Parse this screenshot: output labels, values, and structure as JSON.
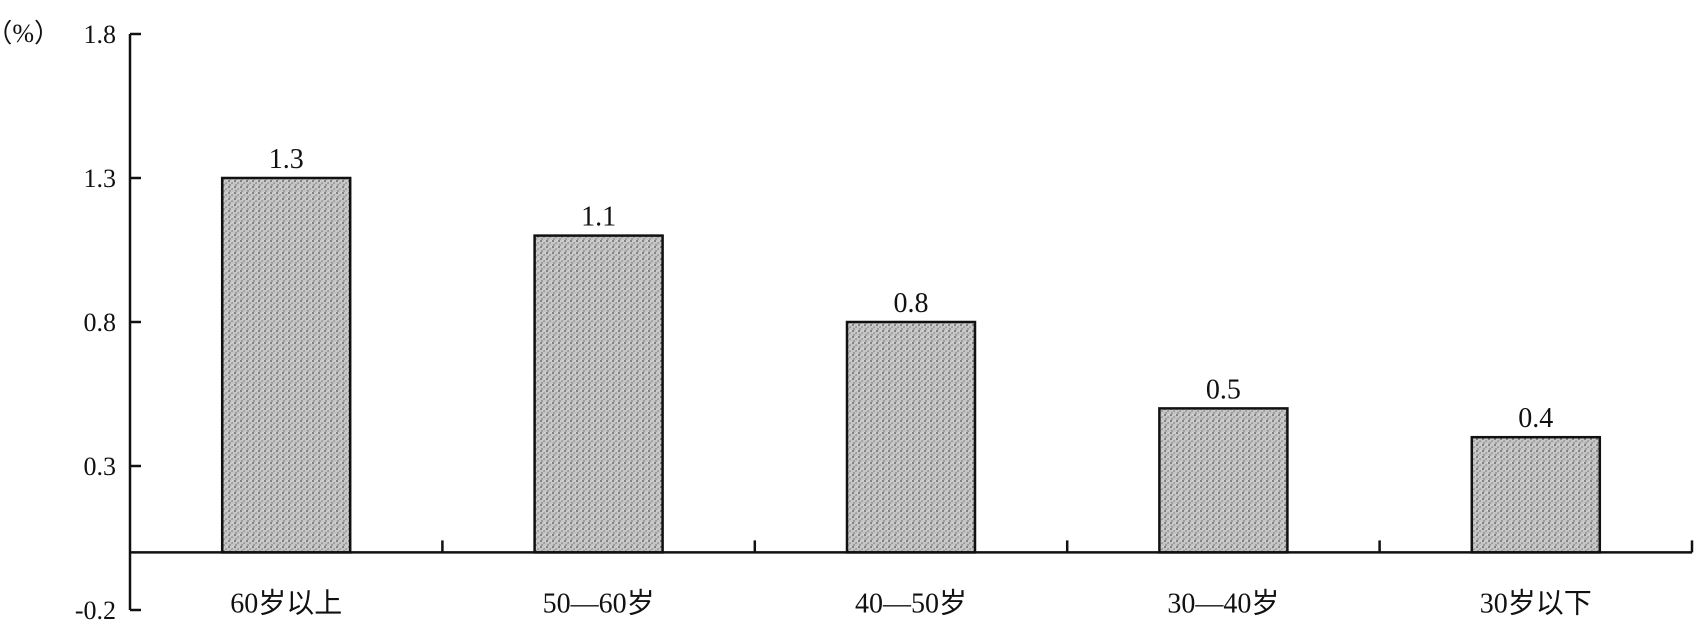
{
  "chart_data": {
    "type": "bar",
    "unit_label": "（%）",
    "categories": [
      "60岁以上",
      "50—60岁",
      "40—50岁",
      "30—40岁",
      "30岁以下"
    ],
    "values": [
      1.3,
      1.1,
      0.8,
      0.5,
      0.4
    ],
    "data_labels": [
      "1.3",
      "1.1",
      "0.8",
      "0.5",
      "0.4"
    ],
    "y_ticks": [
      -0.2,
      0.3,
      0.8,
      1.3,
      1.8
    ],
    "y_tick_labels": [
      "-0.2",
      "0.3",
      "0.8",
      "1.3",
      "1.8"
    ],
    "ylim": [
      -0.2,
      1.8
    ],
    "title": "",
    "xlabel": "",
    "ylabel": "",
    "grid": false,
    "legend": "none",
    "bar_fill": "#bdbdbd",
    "bar_stroke": "#111111"
  }
}
